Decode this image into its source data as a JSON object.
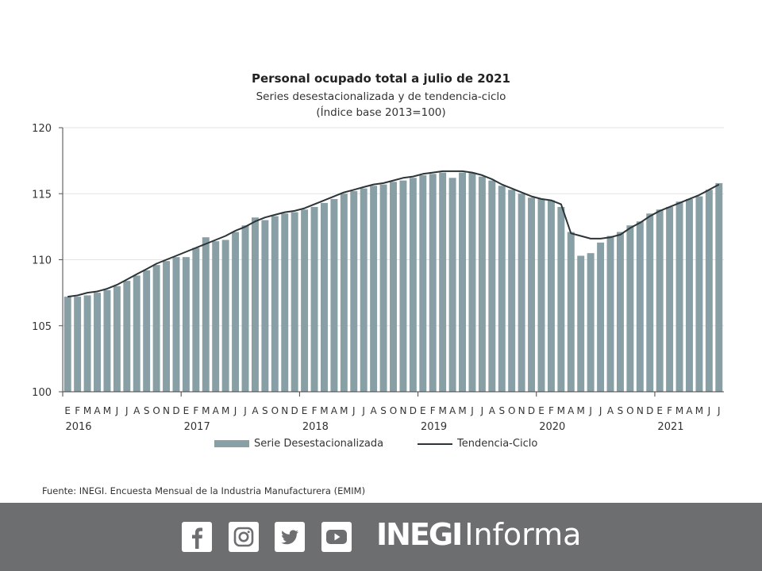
{
  "chart_data": {
    "type": "bar",
    "title": "Personal ocupado total a julio de 2021",
    "subtitle": "Series desestacionalizada y de tendencia-ciclo",
    "subtitle2": "(Índice base 2013=100)",
    "xlabel": "",
    "ylabel": "",
    "ylim": [
      100,
      120
    ],
    "yticks": [
      100,
      105,
      110,
      115,
      120
    ],
    "grid": true,
    "legend_position": "bottom",
    "month_labels": [
      "E",
      "F",
      "M",
      "A",
      "M",
      "J",
      "J",
      "A",
      "S",
      "O",
      "N",
      "D"
    ],
    "years": [
      "2016",
      "2017",
      "2018",
      "2019",
      "2020",
      "2021"
    ],
    "start": "2016-01",
    "end": "2021-07",
    "series": [
      {
        "name": "Serie Desestacionalizada",
        "type": "bar",
        "color": "#899fa6",
        "values": [
          107.2,
          107.2,
          107.3,
          107.5,
          107.7,
          108.0,
          108.4,
          108.8,
          109.2,
          109.6,
          109.9,
          110.2,
          110.2,
          110.9,
          111.7,
          111.4,
          111.5,
          112.1,
          112.6,
          113.2,
          113.0,
          113.3,
          113.5,
          113.6,
          113.8,
          114.0,
          114.3,
          114.6,
          115.0,
          115.2,
          115.4,
          115.6,
          115.7,
          115.9,
          116.0,
          116.2,
          116.4,
          116.5,
          116.6,
          116.2,
          116.6,
          116.6,
          116.3,
          116.0,
          115.6,
          115.3,
          115.0,
          114.7,
          114.6,
          114.5,
          114.0,
          112.1,
          110.3,
          110.5,
          111.3,
          111.8,
          112.1,
          112.6,
          112.9,
          113.5,
          113.8,
          114.0,
          114.4,
          114.6,
          114.8,
          115.3,
          115.8
        ]
      },
      {
        "name": "Tendencia-Ciclo",
        "type": "line",
        "color": "#2b3436",
        "values": [
          107.2,
          107.3,
          107.5,
          107.6,
          107.8,
          108.1,
          108.5,
          108.9,
          109.3,
          109.7,
          110.0,
          110.3,
          110.6,
          110.9,
          111.2,
          111.5,
          111.8,
          112.2,
          112.5,
          112.9,
          113.2,
          113.4,
          113.6,
          113.7,
          113.9,
          114.2,
          114.5,
          114.8,
          115.1,
          115.3,
          115.5,
          115.7,
          115.8,
          116.0,
          116.2,
          116.3,
          116.5,
          116.6,
          116.7,
          116.7,
          116.7,
          116.6,
          116.4,
          116.1,
          115.7,
          115.4,
          115.1,
          114.8,
          114.6,
          114.5,
          114.2,
          112.0,
          111.8,
          111.6,
          111.6,
          111.7,
          111.9,
          112.4,
          112.8,
          113.3,
          113.7,
          114.0,
          114.3,
          114.6,
          114.9,
          115.3,
          115.7
        ]
      }
    ]
  },
  "legend": {
    "bar_label": "Serie Desestacionalizada",
    "line_label": "Tendencia-Ciclo"
  },
  "source": "Fuente: INEGI. Encuesta Mensual de la Industria Manufacturera (EMIM)",
  "footer": {
    "social_icons": [
      "facebook-icon",
      "instagram-icon",
      "twitter-icon",
      "youtube-icon"
    ],
    "brand_bold": "INEGI",
    "brand_light": "Informa",
    "background": "#6d6e70"
  }
}
